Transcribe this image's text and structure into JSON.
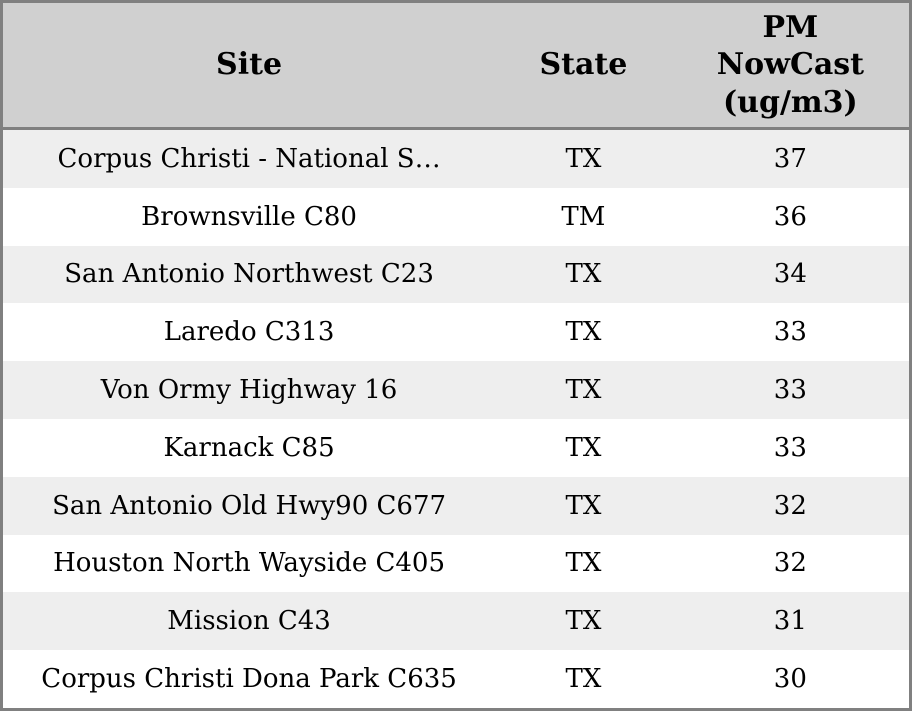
{
  "table": {
    "columns": [
      {
        "key": "site",
        "label": "Site"
      },
      {
        "key": "state",
        "label": "State"
      },
      {
        "key": "pm_nowcast",
        "label": "PM\nNowCast\n(ug/m3)"
      }
    ],
    "rows": [
      {
        "site": "Corpus Christi - National S…",
        "state": "TX",
        "pm_nowcast": "37"
      },
      {
        "site": "Brownsville C80",
        "state": "TM",
        "pm_nowcast": "36"
      },
      {
        "site": "San Antonio Northwest C23",
        "state": "TX",
        "pm_nowcast": "34"
      },
      {
        "site": "Laredo C313",
        "state": "TX",
        "pm_nowcast": "33"
      },
      {
        "site": "Von Ormy Highway 16",
        "state": "TX",
        "pm_nowcast": "33"
      },
      {
        "site": "Karnack C85",
        "state": "TX",
        "pm_nowcast": "33"
      },
      {
        "site": "San Antonio Old Hwy90 C677",
        "state": "TX",
        "pm_nowcast": "32"
      },
      {
        "site": "Houston North Wayside C405",
        "state": "TX",
        "pm_nowcast": "32"
      },
      {
        "site": "Mission C43",
        "state": "TX",
        "pm_nowcast": "31"
      },
      {
        "site": "Corpus Christi Dona Park C635",
        "state": "TX",
        "pm_nowcast": "30"
      }
    ]
  },
  "colors": {
    "frame_border": "#808080",
    "header_bg": "#d0d0d0",
    "row_odd_bg": "#eeeeee",
    "row_even_bg": "#ffffff",
    "text": "#000000"
  }
}
